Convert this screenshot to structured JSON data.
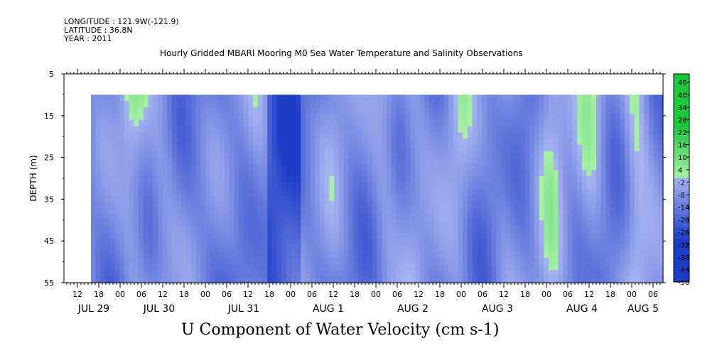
{
  "header": {
    "longitude": "LONGITUDE : 121.9W(-121.9)",
    "latitude": "LATITUDE : 36.8N",
    "year": "YEAR : 2011"
  },
  "chart_data": {
    "type": "heatmap",
    "title": "Hourly Gridded MBARI Mooring M0 Sea Water Temperature and Salinity Observations",
    "xlabel": "U Component of Water Velocity (cm s-1)",
    "ylabel": "DEPTH (m)",
    "y_ticks": [
      "5",
      "15",
      "25",
      "35",
      "45",
      "55"
    ],
    "ylim": [
      55,
      5
    ],
    "x_hour_ticks": [
      "12",
      "18",
      "00",
      "06",
      "12",
      "18",
      "00",
      "06",
      "12",
      "18",
      "00",
      "06",
      "12",
      "18",
      "00",
      "06",
      "12",
      "18",
      "00",
      "06",
      "12",
      "18",
      "00",
      "06",
      "12",
      "18",
      "00",
      "06"
    ],
    "x_day_labels": [
      "JUL 29",
      "JUL 30",
      "JUL 31",
      "AUG  1",
      "AUG  2",
      "AUG  3",
      "AUG  4",
      "AUG  5"
    ],
    "colorbar": {
      "labels": [
        "46",
        "40",
        "34",
        "28",
        "22",
        "16",
        "10",
        "4",
        "-2",
        "-8",
        "-14",
        "-20",
        "-26",
        "-32",
        "-38",
        "-44",
        "-50"
      ],
      "range": [
        -50,
        50
      ]
    },
    "data_depth_range": [
      10,
      55
    ]
  },
  "colors": {
    "negative_deep": "#1e3cc8",
    "negative_light": "#a8b4f0",
    "positive_light": "#a8f0a8",
    "positive_deep": "#1ec83c"
  }
}
